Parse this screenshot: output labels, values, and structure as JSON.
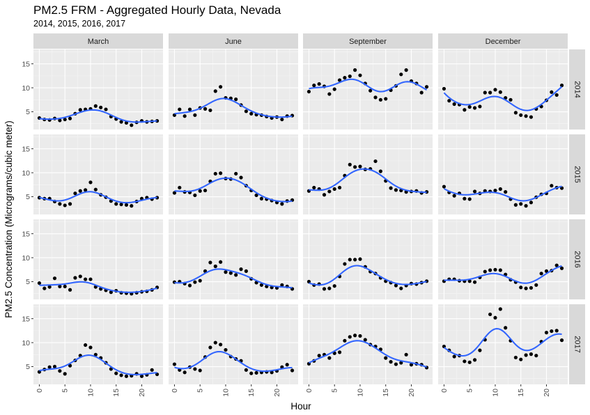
{
  "chart_data": {
    "type": "scatter",
    "title": "PM2.5 FRM - Aggregated Hourly Data, Nevada",
    "subtitle": "2014, 2015, 2016, 2017",
    "xlabel": "Hour",
    "ylabel": "PM2.5 Concentration (Micrograms/cubic meter)",
    "xlim": [
      -1.15,
      24.15
    ],
    "ylim": [
      1.3,
      18
    ],
    "x_ticks": [
      0,
      5,
      10,
      15,
      20
    ],
    "y_ticks": [
      5,
      10,
      15
    ],
    "columns": [
      "March",
      "June",
      "September",
      "December"
    ],
    "rows": [
      "2014",
      "2015",
      "2016",
      "2017"
    ],
    "grid": true,
    "smooth_color": "#3366ff",
    "panel_background": "#ebebeb",
    "strip_background": "#d9d9d9",
    "x": [
      0,
      1,
      2,
      3,
      4,
      5,
      6,
      7,
      8,
      9,
      10,
      11,
      12,
      13,
      14,
      15,
      16,
      17,
      18,
      19,
      20,
      21,
      22,
      23
    ],
    "panels": [
      {
        "row": "2014",
        "col": "March",
        "y": [
          3.7,
          3.4,
          3.3,
          3.6,
          3.2,
          3.4,
          3.6,
          4.6,
          5.4,
          5.5,
          5.6,
          6.2,
          5.9,
          5.5,
          4.0,
          3.5,
          2.9,
          2.7,
          2.2,
          2.8,
          3.1,
          2.9,
          3.0,
          3.1
        ]
      },
      {
        "row": "2014",
        "col": "June",
        "y": [
          4.3,
          5.5,
          4.1,
          5.5,
          4.3,
          5.8,
          5.6,
          5.3,
          9.3,
          10.2,
          7.9,
          7.8,
          7.6,
          6.4,
          5.1,
          4.6,
          4.4,
          4.3,
          4.0,
          3.7,
          3.9,
          3.4,
          4.1,
          4.2
        ]
      },
      {
        "row": "2014",
        "col": "September",
        "y": [
          9.2,
          10.5,
          10.8,
          10.3,
          8.7,
          9.7,
          11.6,
          12.1,
          12.4,
          13.7,
          12.6,
          10.9,
          9.4,
          8.0,
          7.5,
          7.7,
          9.5,
          10.4,
          12.8,
          13.7,
          11.4,
          10.9,
          9.0,
          10.2
        ]
      },
      {
        "row": "2014",
        "col": "December",
        "y": [
          9.8,
          7.3,
          6.6,
          6.5,
          5.4,
          6.0,
          5.8,
          6.1,
          9.0,
          9.0,
          9.6,
          9.1,
          7.9,
          7.5,
          4.8,
          4.3,
          4.1,
          3.9,
          5.6,
          6.1,
          7.4,
          9.1,
          8.5,
          10.5
        ]
      },
      {
        "row": "2015",
        "col": "March",
        "y": [
          4.8,
          4.6,
          4.6,
          4.0,
          3.5,
          3.2,
          3.5,
          5.7,
          6.2,
          6.4,
          8.0,
          6.5,
          5.4,
          4.9,
          4.1,
          3.5,
          3.4,
          3.3,
          3.1,
          4.0,
          4.6,
          4.8,
          4.5,
          4.8
        ]
      },
      {
        "row": "2015",
        "col": "June",
        "y": [
          5.8,
          6.9,
          6.0,
          5.9,
          5.3,
          6.2,
          6.3,
          8.2,
          9.8,
          9.9,
          8.8,
          8.7,
          9.8,
          9.0,
          7.3,
          6.3,
          5.3,
          4.6,
          4.5,
          4.2,
          3.8,
          3.5,
          4.1,
          4.3
        ]
      },
      {
        "row": "2015",
        "col": "September",
        "y": [
          6.2,
          6.9,
          6.6,
          5.4,
          6.1,
          6.6,
          6.9,
          9.4,
          11.7,
          11.2,
          11.3,
          10.7,
          10.8,
          12.4,
          10.3,
          8.3,
          6.8,
          6.4,
          6.3,
          6.0,
          6.1,
          6.2,
          5.8,
          6.0
        ]
      },
      {
        "row": "2015",
        "col": "December",
        "y": [
          7.1,
          5.9,
          5.2,
          5.7,
          4.6,
          4.5,
          6.1,
          5.7,
          6.2,
          6.1,
          6.3,
          6.6,
          6.0,
          4.5,
          3.3,
          3.5,
          3.1,
          3.8,
          4.9,
          5.5,
          5.7,
          7.3,
          6.9,
          6.8
        ]
      },
      {
        "row": "2016",
        "col": "March",
        "y": [
          4.7,
          3.6,
          3.9,
          5.7,
          4.0,
          4.0,
          3.3,
          5.8,
          6.1,
          5.5,
          5.5,
          3.9,
          3.5,
          3.2,
          2.8,
          3.1,
          2.7,
          2.6,
          2.5,
          2.7,
          2.9,
          3.0,
          3.3,
          3.8
        ]
      },
      {
        "row": "2016",
        "col": "June",
        "y": [
          4.9,
          5.0,
          4.6,
          4.2,
          4.9,
          5.2,
          7.2,
          9.0,
          8.2,
          9.1,
          7.0,
          6.8,
          6.4,
          7.6,
          7.2,
          5.6,
          4.8,
          4.3,
          4.0,
          3.8,
          3.7,
          4.3,
          4.0,
          3.5
        ]
      },
      {
        "row": "2016",
        "col": "September",
        "y": [
          5.0,
          4.3,
          4.5,
          3.5,
          3.6,
          4.1,
          6.1,
          8.7,
          9.6,
          9.6,
          9.7,
          8.1,
          7.1,
          6.7,
          5.8,
          5.1,
          4.8,
          4.2,
          3.6,
          4.2,
          4.6,
          4.5,
          4.8,
          5.1
        ]
      },
      {
        "row": "2016",
        "col": "December",
        "y": [
          5.1,
          5.5,
          5.5,
          5.2,
          5.1,
          5.1,
          4.9,
          5.9,
          7.1,
          7.4,
          7.5,
          7.4,
          6.5,
          5.4,
          4.9,
          3.8,
          3.6,
          3.7,
          4.3,
          6.7,
          7.2,
          7.3,
          8.4,
          7.8
        ]
      },
      {
        "row": "2017",
        "col": "March",
        "y": [
          3.9,
          4.4,
          4.9,
          5.0,
          4.1,
          3.5,
          5.2,
          6.3,
          7.3,
          9.5,
          9.0,
          7.5,
          6.8,
          5.8,
          4.5,
          3.6,
          3.2,
          3.0,
          3.1,
          3.5,
          3.0,
          3.3,
          4.3,
          3.4
        ]
      },
      {
        "row": "2017",
        "col": "June",
        "y": [
          5.5,
          4.3,
          3.8,
          4.9,
          4.5,
          4.2,
          7.0,
          9.0,
          10.0,
          9.6,
          8.5,
          7.1,
          6.6,
          6.2,
          4.3,
          3.6,
          3.7,
          3.8,
          3.9,
          3.8,
          4.1,
          4.9,
          5.4,
          4.2
        ]
      },
      {
        "row": "2017",
        "col": "September",
        "y": [
          5.6,
          6.2,
          7.3,
          7.5,
          6.8,
          7.8,
          8.0,
          10.4,
          11.2,
          11.5,
          11.4,
          10.6,
          9.6,
          9.2,
          8.6,
          6.8,
          6.0,
          5.5,
          5.8,
          7.5,
          5.4,
          5.6,
          5.4,
          4.8
        ]
      },
      {
        "row": "2017",
        "col": "December",
        "y": [
          9.2,
          8.4,
          7.1,
          7.3,
          6.1,
          5.9,
          6.4,
          8.4,
          10.6,
          15.9,
          15.2,
          17.0,
          13.1,
          10.4,
          6.9,
          6.5,
          7.4,
          7.6,
          7.3,
          10.2,
          12.1,
          12.4,
          12.5,
          10.5
        ]
      }
    ]
  }
}
